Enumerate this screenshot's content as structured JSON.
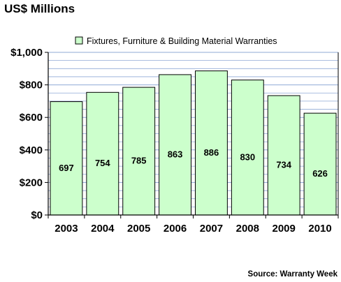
{
  "chart_data": {
    "type": "bar",
    "title": "US$ Millions",
    "source": "Source: Warranty Week",
    "categories": [
      "2003",
      "2004",
      "2005",
      "2006",
      "2007",
      "2008",
      "2009",
      "2010"
    ],
    "series": [
      {
        "name": "Fixtures, Furniture & Building Material Warranties",
        "values": [
          697,
          754,
          785,
          863,
          886,
          830,
          734,
          626
        ],
        "color": "#ccffcc"
      }
    ],
    "data_labels": [
      "697",
      "754",
      "785",
      "863",
      "886",
      "830",
      "734",
      "626"
    ],
    "yticks": [
      0,
      200,
      400,
      600,
      800,
      1000
    ],
    "ytick_labels": [
      "$0",
      "$200",
      "$400",
      "$600",
      "$800",
      "$1,000"
    ],
    "ylim": [
      0,
      1000
    ],
    "xlabel": "",
    "ylabel": "",
    "grid": true,
    "legend_position": "top",
    "colors": {
      "grid": "#8fa9d6",
      "plot_background": "#ffffff",
      "bar_fill": "#ccffcc",
      "bar_stroke": "#000000"
    }
  }
}
